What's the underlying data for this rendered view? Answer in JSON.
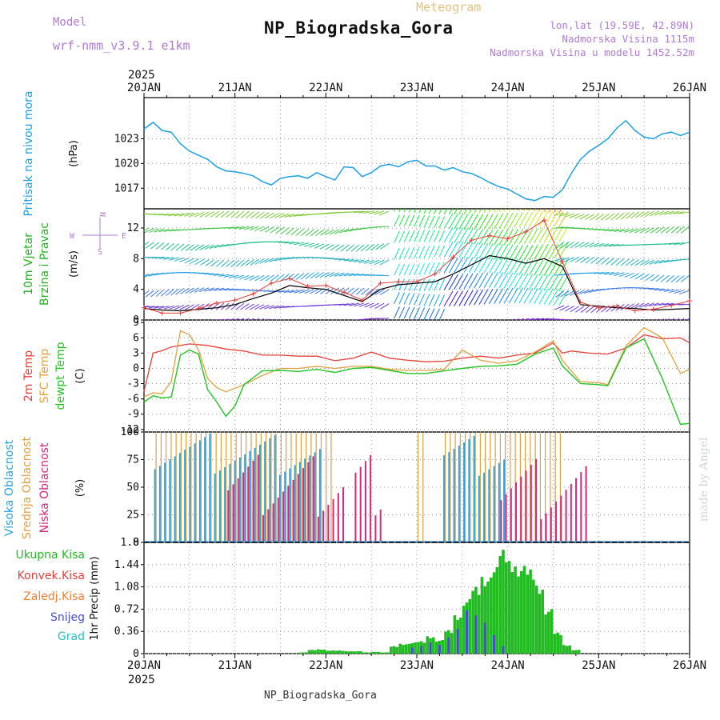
{
  "header": {
    "model_label": "Model",
    "model_name": "wrf-nmm_v3.9.1 e1km",
    "station": "NP_Biogradska_Gora",
    "meteogram_label": "Meteogram",
    "coords": "lon,lat (19.59E, 42.89N)",
    "elevation": "Nadmorska Visina 1115m",
    "model_elevation": "Nadmorska Visina u modelu 1452.52m"
  },
  "footer": {
    "station": "NP_Biogradska_Gora",
    "credit": "made by Angel"
  },
  "colors": {
    "pressure": "#1aa0e6",
    "temp2m": "#e8403a",
    "sfctemp": "#e0a040",
    "dewpt": "#22c422",
    "high_cloud": "#29a3e0",
    "mid_cloud": "#e0a040",
    "low_cloud": "#d4287a",
    "total_precip": "#22bb22",
    "conv_precip": "#e8403a",
    "frz_precip": "#f08030",
    "snow": "#4a4ad8",
    "hail": "#2ac0c0",
    "mean_wind": "#000000",
    "gust": "#e8403a"
  },
  "chart_data": [
    {
      "type": "line",
      "id": "pressure",
      "x_axis": {
        "year": "2025",
        "ticks": [
          "20JAN",
          "21JAN",
          "22JAN",
          "23JAN",
          "24JAN",
          "25JAN",
          "26JAN"
        ],
        "range_days": [
          0,
          6
        ]
      },
      "ylabel": [
        "Pritisak na nivou mora",
        "(hPa)"
      ],
      "yticks": [
        "1023",
        "1020",
        "1017"
      ],
      "ylim": [
        1014.5,
        1028
      ],
      "series": [
        {
          "x": [
            0,
            0.1,
            0.2,
            0.3,
            0.4,
            0.5,
            0.6,
            0.7,
            0.8,
            0.9,
            1.0,
            1.1,
            1.2,
            1.3,
            1.4,
            1.5,
            1.6,
            1.7,
            1.8,
            1.9,
            2.0,
            2.1,
            2.2,
            2.3,
            2.4,
            2.5,
            2.6,
            2.7,
            2.8,
            2.9,
            3.0,
            3.1,
            3.2,
            3.3,
            3.4,
            3.5,
            3.6,
            3.7,
            3.8,
            3.9,
            4.0,
            4.1,
            4.2,
            4.3,
            4.4,
            4.5,
            4.6,
            4.7,
            4.8,
            4.9,
            5.0,
            5.1,
            5.2,
            5.3,
            5.4,
            5.5,
            5.6,
            5.7,
            5.8,
            5.9,
            6.0
          ],
          "y": [
            1024.2,
            1025,
            1024,
            1023.8,
            1022.4,
            1021.5,
            1021.0,
            1020.5,
            1019.6,
            1019.1,
            1019.0,
            1018.8,
            1018.5,
            1017.8,
            1017.4,
            1018.2,
            1018.4,
            1018.5,
            1018.2,
            1018.9,
            1018.4,
            1018.0,
            1019.6,
            1019.5,
            1018.4,
            1018.9,
            1019.7,
            1019.9,
            1019.6,
            1020.2,
            1020.4,
            1019.7,
            1019.7,
            1019.2,
            1019.5,
            1019.0,
            1018.8,
            1018.3,
            1017.7,
            1017.2,
            1016.9,
            1016.3,
            1015.7,
            1015.5,
            1016.0,
            1015.9,
            1016.8,
            1018.8,
            1020.5,
            1021.5,
            1022.2,
            1023.0,
            1024.3,
            1025.2,
            1024.0,
            1023.2,
            1023.0,
            1023.6,
            1023.8,
            1023.4,
            1023.8
          ]
        }
      ]
    },
    {
      "type": "line",
      "id": "wind",
      "ylabel": [
        "10m Vjetar",
        "Brzina i Pravac",
        "(m/s)"
      ],
      "compass": {
        "n": "N",
        "s": "S",
        "w": "W",
        "e": "E"
      },
      "yticks": [
        "12",
        "8",
        "4",
        "0"
      ],
      "ylim": [
        0,
        14.5
      ],
      "barb_rows_ms": [
        0,
        2,
        4,
        6,
        8,
        10,
        12,
        14
      ],
      "series": [
        {
          "name": "mean",
          "x": [
            0,
            0.2,
            0.4,
            0.6,
            0.8,
            1.0,
            1.2,
            1.4,
            1.6,
            1.8,
            2.0,
            2.2,
            2.4,
            2.6,
            2.8,
            3.0,
            3.2,
            3.4,
            3.6,
            3.8,
            4.0,
            4.2,
            4.4,
            4.6,
            4.8,
            5.0,
            5.2,
            5.4,
            5.6,
            5.8,
            6.0
          ],
          "y": [
            1.5,
            1.3,
            1.2,
            1.4,
            1.6,
            2.0,
            2.8,
            3.5,
            4.5,
            4.2,
            4.0,
            3.2,
            2.4,
            4.0,
            4.6,
            4.8,
            5.0,
            6.0,
            7.2,
            8.4,
            8.0,
            7.4,
            8.0,
            7.0,
            2.0,
            1.8,
            1.6,
            1.5,
            1.3,
            1.4,
            1.5
          ]
        },
        {
          "name": "gust",
          "x": [
            0,
            0.2,
            0.4,
            0.6,
            0.8,
            1.0,
            1.2,
            1.4,
            1.6,
            1.8,
            2.0,
            2.2,
            2.4,
            2.6,
            2.8,
            3.0,
            3.2,
            3.4,
            3.6,
            3.8,
            4.0,
            4.2,
            4.4,
            4.6,
            4.8,
            5.0,
            5.2,
            5.4,
            5.6,
            5.8,
            6.0
          ],
          "y": [
            1.6,
            0.9,
            0.9,
            1.5,
            2.2,
            2.6,
            3.4,
            4.8,
            5.4,
            4.4,
            4.5,
            3.6,
            2.6,
            4.8,
            5.0,
            5.0,
            6.0,
            8.2,
            10.4,
            11.0,
            10.6,
            11.5,
            13.0,
            7.6,
            2.3,
            1.6,
            1.8,
            1.2,
            1.4,
            1.9,
            2.5
          ]
        }
      ]
    },
    {
      "type": "line",
      "id": "temperature",
      "ylabel": [
        "2m Temp",
        "SFC Temp",
        "dewpt Temp",
        "(C)"
      ],
      "yticks": [
        "9",
        "6",
        "3",
        "0",
        "-3",
        "-6",
        "-9",
        "-12"
      ],
      "ylim": [
        -12.5,
        9.5
      ],
      "series": [
        {
          "name": "2m",
          "x": [
            0,
            0.1,
            0.2,
            0.3,
            0.5,
            0.7,
            0.9,
            1.1,
            1.3,
            1.5,
            1.7,
            1.9,
            2.1,
            2.3,
            2.5,
            2.7,
            2.9,
            3.1,
            3.3,
            3.5,
            3.7,
            3.9,
            4.1,
            4.3,
            4.5,
            4.6,
            4.7,
            4.9,
            5.1,
            5.3,
            5.5,
            5.7,
            5.9,
            6.0
          ],
          "y": [
            -4.5,
            3.0,
            3.5,
            4.2,
            4.8,
            4.5,
            3.8,
            3.4,
            2.6,
            2.6,
            2.4,
            2.4,
            1.5,
            2.0,
            3.2,
            2.0,
            1.6,
            1.3,
            1.4,
            2.0,
            2.4,
            2.0,
            2.6,
            3.0,
            5.0,
            3.0,
            3.4,
            3.0,
            2.8,
            4.0,
            6.6,
            5.8,
            6.0,
            5.0
          ]
        },
        {
          "name": "sfc",
          "x": [
            0,
            0.1,
            0.2,
            0.3,
            0.4,
            0.5,
            0.6,
            0.7,
            0.8,
            0.9,
            1.1,
            1.3,
            1.5,
            1.7,
            1.9,
            2.1,
            2.3,
            2.5,
            2.7,
            2.9,
            3.1,
            3.3,
            3.5,
            3.7,
            3.9,
            4.1,
            4.3,
            4.5,
            4.6,
            4.8,
            5.0,
            5.1,
            5.3,
            5.5,
            5.7,
            5.9,
            6.0
          ],
          "y": [
            -5.6,
            -4.8,
            -5.0,
            -2.6,
            7.4,
            6.6,
            3.6,
            -2.0,
            -3.8,
            -4.6,
            -3.2,
            -1.4,
            0.0,
            0.0,
            0.4,
            0.0,
            0.4,
            0.4,
            -0.2,
            -0.4,
            -0.4,
            -0.2,
            3.6,
            1.6,
            1.0,
            1.5,
            3.2,
            5.4,
            1.6,
            -2.6,
            -2.8,
            -3.2,
            4.4,
            8.0,
            6.0,
            -1.0,
            -0.2
          ]
        },
        {
          "name": "dewpt",
          "x": [
            0,
            0.1,
            0.2,
            0.3,
            0.4,
            0.5,
            0.6,
            0.7,
            0.8,
            0.9,
            1.0,
            1.1,
            1.3,
            1.5,
            1.7,
            1.9,
            2.1,
            2.3,
            2.5,
            2.7,
            2.9,
            3.1,
            3.3,
            3.5,
            3.7,
            3.9,
            4.1,
            4.3,
            4.5,
            4.6,
            4.8,
            5.0,
            5.1,
            5.3,
            5.5,
            5.7,
            5.9,
            6.0
          ],
          "y": [
            -6.6,
            -5.4,
            -5.8,
            -5.6,
            2.6,
            3.6,
            2.8,
            -4.2,
            -6.6,
            -9.4,
            -7.4,
            -3.2,
            -0.5,
            -0.4,
            -0.6,
            -0.2,
            -0.8,
            0.0,
            0.2,
            -0.4,
            -1.0,
            -1.0,
            -0.5,
            0.0,
            0.4,
            0.5,
            0.8,
            2.8,
            4.0,
            0.5,
            -3.0,
            -3.2,
            -3.4,
            4.0,
            5.8,
            -2.0,
            -11.0,
            -10.8
          ]
        }
      ]
    },
    {
      "type": "bar",
      "id": "clouds",
      "ylabel": [
        "Visoka Oblacnost",
        "Srednja Oblacnost",
        "Niska Oblacnost",
        "(%)"
      ],
      "yticks": [
        "100",
        "75",
        "50",
        "25",
        "0"
      ],
      "ylim": [
        0,
        100
      ],
      "series": [
        {
          "name": "high",
          "segments_days": [
            [
              0.12,
              1.95
            ],
            [
              3.3,
              4.0
            ]
          ],
          "value_pct": 99
        },
        {
          "name": "mid",
          "segments_days": [
            [
              0.12,
              2.05
            ],
            [
              3.0,
              3.1
            ],
            [
              3.3,
              4.6
            ]
          ],
          "value_pct": 99
        },
        {
          "name": "low",
          "segments_days": [
            [
              0.9,
              2.2
            ],
            [
              2.3,
              2.6
            ],
            [
              3.9,
              4.85
            ]
          ],
          "value_pct": 25
        }
      ]
    },
    {
      "type": "bar",
      "id": "precip",
      "ylabel": [
        "Ukupna Kisa",
        "Konvek.Kisa",
        "Zaledj.Kisa",
        "Snijeg",
        "Grad",
        "1hr Precip (mm)"
      ],
      "yticks": [
        "1.8",
        "1.44",
        "1.08",
        "0.72",
        "0.36",
        "0"
      ],
      "ylim": [
        0,
        1.8
      ],
      "series": [
        {
          "name": "total",
          "x": [
            1.75,
            1.85,
            1.95,
            2.05,
            2.15,
            2.25,
            2.35,
            2.45,
            2.55,
            2.65,
            2.75,
            2.85,
            2.95,
            3.05,
            3.15,
            3.25,
            3.35,
            3.45,
            3.55,
            3.65,
            3.75,
            3.85,
            3.95,
            4.05,
            4.15,
            4.25,
            4.35,
            4.45,
            4.55,
            4.65,
            4.75
          ],
          "y": [
            0.02,
            0.06,
            0.07,
            0.05,
            0.05,
            0.04,
            0.04,
            0.02,
            0.03,
            0.02,
            0.12,
            0.16,
            0.18,
            0.2,
            0.28,
            0.22,
            0.38,
            0.62,
            0.88,
            1.08,
            1.24,
            1.4,
            1.68,
            1.5,
            1.42,
            1.36,
            1.1,
            0.72,
            0.34,
            0.14,
            0.06
          ]
        },
        {
          "name": "snow",
          "x": [
            2.95,
            3.05,
            3.15,
            3.25,
            3.35,
            3.45,
            3.55,
            3.65,
            3.75,
            3.85,
            3.95
          ],
          "y": [
            0.1,
            0.12,
            0.18,
            0.14,
            0.26,
            0.4,
            0.7,
            0.62,
            0.5,
            0.3,
            0.12
          ]
        }
      ]
    }
  ]
}
